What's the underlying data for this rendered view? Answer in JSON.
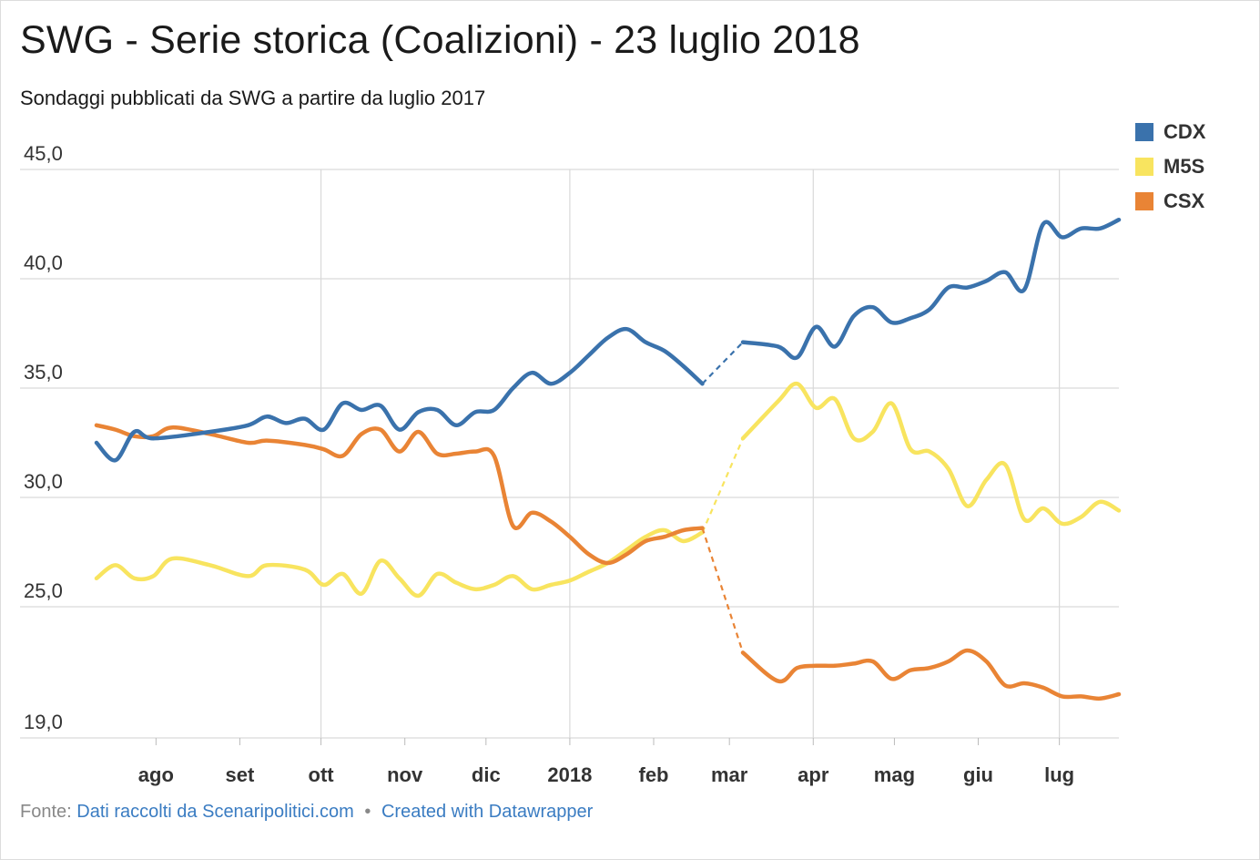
{
  "title": "SWG - Serie storica (Coalizioni) - 23 luglio 2018",
  "subtitle": "Sondaggi pubblicati da SWG a partire da luglio 2017",
  "footer": {
    "prefix": "Fonte:",
    "source_link": "Dati raccolti da Scenaripolitici.com",
    "separator": "•",
    "credit_link": "Created with Datawrapper"
  },
  "colors": {
    "CDX": "#3a72ac",
    "M5S": "#f8e45f",
    "CSX": "#e98435",
    "grid": "#d9d9d9",
    "text": "#333333"
  },
  "chart_data": {
    "type": "line",
    "title": "SWG - Serie storica (Coalizioni) - 23 luglio 2018",
    "subtitle": "Sondaggi pubblicati da SWG a partire da luglio 2017",
    "xlabel": "",
    "ylabel": "",
    "x_range": [
      "2017-07-10",
      "2018-07-23"
    ],
    "ylim": [
      19,
      45
    ],
    "y_ticks": [
      {
        "value": 45,
        "label": "45,0"
      },
      {
        "value": 40,
        "label": "40,0"
      },
      {
        "value": 35,
        "label": "35,0"
      },
      {
        "value": 30,
        "label": "30,0"
      },
      {
        "value": 25,
        "label": "25,0"
      },
      {
        "value": 19,
        "label": "19,0"
      }
    ],
    "x_ticks": [
      {
        "date": "2017-08-01",
        "label": "ago"
      },
      {
        "date": "2017-09-01",
        "label": "set"
      },
      {
        "date": "2017-10-01",
        "label": "ott"
      },
      {
        "date": "2017-11-01",
        "label": "nov"
      },
      {
        "date": "2017-12-01",
        "label": "dic"
      },
      {
        "date": "2018-01-01",
        "label": "2018"
      },
      {
        "date": "2018-02-01",
        "label": "feb"
      },
      {
        "date": "2018-03-01",
        "label": "mar"
      },
      {
        "date": "2018-04-01",
        "label": "apr"
      },
      {
        "date": "2018-05-01",
        "label": "mag"
      },
      {
        "date": "2018-06-01",
        "label": "giu"
      },
      {
        "date": "2018-07-01",
        "label": "lug"
      }
    ],
    "x_gridlines": [
      "2017-10-01",
      "2018-01-01",
      "2018-04-01",
      "2018-07-01"
    ],
    "legend": {
      "position": "top-right",
      "entries": [
        "CDX",
        "M5S",
        "CSX"
      ]
    },
    "dashed_gap": [
      "2018-02-19",
      "2018-03-06"
    ],
    "series": [
      {
        "name": "CDX",
        "points": [
          [
            "2017-07-10",
            32.5
          ],
          [
            "2017-07-17",
            31.7
          ],
          [
            "2017-07-24",
            33.0
          ],
          [
            "2017-07-31",
            32.7
          ],
          [
            "2017-08-21",
            33.0
          ],
          [
            "2017-09-04",
            33.3
          ],
          [
            "2017-09-11",
            33.7
          ],
          [
            "2017-09-18",
            33.4
          ],
          [
            "2017-09-25",
            33.6
          ],
          [
            "2017-10-02",
            33.1
          ],
          [
            "2017-10-09",
            34.3
          ],
          [
            "2017-10-16",
            34.0
          ],
          [
            "2017-10-23",
            34.2
          ],
          [
            "2017-10-30",
            33.1
          ],
          [
            "2017-11-06",
            33.9
          ],
          [
            "2017-11-13",
            34.0
          ],
          [
            "2017-11-20",
            33.3
          ],
          [
            "2017-11-27",
            33.9
          ],
          [
            "2017-12-04",
            34.0
          ],
          [
            "2017-12-11",
            35.0
          ],
          [
            "2017-12-18",
            35.7
          ],
          [
            "2017-12-25",
            35.2
          ],
          [
            "2018-01-01",
            35.7
          ],
          [
            "2018-01-08",
            36.5
          ],
          [
            "2018-01-15",
            37.3
          ],
          [
            "2018-01-22",
            37.7
          ],
          [
            "2018-01-29",
            37.1
          ],
          [
            "2018-02-05",
            36.7
          ],
          [
            "2018-02-12",
            36.0
          ],
          [
            "2018-02-19",
            35.2
          ],
          [
            "2018-03-06",
            37.1
          ],
          [
            "2018-03-19",
            36.9
          ],
          [
            "2018-03-26",
            36.4
          ],
          [
            "2018-04-02",
            37.8
          ],
          [
            "2018-04-09",
            36.9
          ],
          [
            "2018-04-16",
            38.3
          ],
          [
            "2018-04-23",
            38.7
          ],
          [
            "2018-04-30",
            38.0
          ],
          [
            "2018-05-07",
            38.2
          ],
          [
            "2018-05-14",
            38.6
          ],
          [
            "2018-05-21",
            39.6
          ],
          [
            "2018-05-28",
            39.6
          ],
          [
            "2018-06-04",
            39.9
          ],
          [
            "2018-06-11",
            40.3
          ],
          [
            "2018-06-18",
            39.5
          ],
          [
            "2018-06-25",
            42.5
          ],
          [
            "2018-07-02",
            41.9
          ],
          [
            "2018-07-09",
            42.3
          ],
          [
            "2018-07-16",
            42.3
          ],
          [
            "2018-07-23",
            42.7
          ]
        ]
      },
      {
        "name": "M5S",
        "points": [
          [
            "2017-07-10",
            26.3
          ],
          [
            "2017-07-17",
            26.9
          ],
          [
            "2017-07-24",
            26.3
          ],
          [
            "2017-07-31",
            26.4
          ],
          [
            "2017-08-07",
            27.2
          ],
          [
            "2017-08-21",
            26.9
          ],
          [
            "2017-09-04",
            26.4
          ],
          [
            "2017-09-11",
            26.9
          ],
          [
            "2017-09-25",
            26.7
          ],
          [
            "2017-10-02",
            26.0
          ],
          [
            "2017-10-09",
            26.5
          ],
          [
            "2017-10-16",
            25.6
          ],
          [
            "2017-10-23",
            27.1
          ],
          [
            "2017-10-30",
            26.3
          ],
          [
            "2017-11-06",
            25.5
          ],
          [
            "2017-11-13",
            26.5
          ],
          [
            "2017-11-20",
            26.1
          ],
          [
            "2017-11-27",
            25.8
          ],
          [
            "2017-12-04",
            26.0
          ],
          [
            "2017-12-11",
            26.4
          ],
          [
            "2017-12-18",
            25.8
          ],
          [
            "2017-12-25",
            26.0
          ],
          [
            "2018-01-01",
            26.2
          ],
          [
            "2018-01-08",
            26.6
          ],
          [
            "2018-01-15",
            27.0
          ],
          [
            "2018-01-22",
            27.6
          ],
          [
            "2018-01-29",
            28.2
          ],
          [
            "2018-02-05",
            28.5
          ],
          [
            "2018-02-12",
            28.0
          ],
          [
            "2018-02-19",
            28.4
          ],
          [
            "2018-03-06",
            32.7
          ],
          [
            "2018-03-19",
            34.4
          ],
          [
            "2018-03-26",
            35.2
          ],
          [
            "2018-04-02",
            34.1
          ],
          [
            "2018-04-09",
            34.5
          ],
          [
            "2018-04-16",
            32.7
          ],
          [
            "2018-04-23",
            33.0
          ],
          [
            "2018-04-30",
            34.3
          ],
          [
            "2018-05-07",
            32.2
          ],
          [
            "2018-05-14",
            32.1
          ],
          [
            "2018-05-21",
            31.3
          ],
          [
            "2018-05-28",
            29.6
          ],
          [
            "2018-06-04",
            30.8
          ],
          [
            "2018-06-11",
            31.5
          ],
          [
            "2018-06-18",
            29.0
          ],
          [
            "2018-06-25",
            29.5
          ],
          [
            "2018-07-02",
            28.8
          ],
          [
            "2018-07-09",
            29.1
          ],
          [
            "2018-07-16",
            29.8
          ],
          [
            "2018-07-23",
            29.4
          ]
        ]
      },
      {
        "name": "CSX",
        "points": [
          [
            "2017-07-10",
            33.3
          ],
          [
            "2017-07-17",
            33.1
          ],
          [
            "2017-07-24",
            32.8
          ],
          [
            "2017-07-31",
            32.8
          ],
          [
            "2017-08-07",
            33.2
          ],
          [
            "2017-08-21",
            32.9
          ],
          [
            "2017-09-04",
            32.5
          ],
          [
            "2017-09-11",
            32.6
          ],
          [
            "2017-09-25",
            32.4
          ],
          [
            "2017-10-02",
            32.2
          ],
          [
            "2017-10-09",
            31.9
          ],
          [
            "2017-10-16",
            32.9
          ],
          [
            "2017-10-23",
            33.1
          ],
          [
            "2017-10-30",
            32.1
          ],
          [
            "2017-11-06",
            33.0
          ],
          [
            "2017-11-13",
            32.0
          ],
          [
            "2017-11-20",
            32.0
          ],
          [
            "2017-11-27",
            32.1
          ],
          [
            "2017-12-04",
            31.9
          ],
          [
            "2017-12-11",
            28.7
          ],
          [
            "2017-12-18",
            29.3
          ],
          [
            "2017-12-25",
            28.9
          ],
          [
            "2018-01-01",
            28.2
          ],
          [
            "2018-01-08",
            27.4
          ],
          [
            "2018-01-15",
            27.0
          ],
          [
            "2018-01-22",
            27.4
          ],
          [
            "2018-01-29",
            28.0
          ],
          [
            "2018-02-05",
            28.2
          ],
          [
            "2018-02-12",
            28.5
          ],
          [
            "2018-02-19",
            28.6
          ],
          [
            "2018-03-06",
            22.9
          ],
          [
            "2018-03-19",
            21.6
          ],
          [
            "2018-03-26",
            22.2
          ],
          [
            "2018-04-02",
            22.3
          ],
          [
            "2018-04-09",
            22.3
          ],
          [
            "2018-04-16",
            22.4
          ],
          [
            "2018-04-23",
            22.5
          ],
          [
            "2018-04-30",
            21.7
          ],
          [
            "2018-05-07",
            22.1
          ],
          [
            "2018-05-14",
            22.2
          ],
          [
            "2018-05-21",
            22.5
          ],
          [
            "2018-05-28",
            23.0
          ],
          [
            "2018-06-04",
            22.5
          ],
          [
            "2018-06-11",
            21.4
          ],
          [
            "2018-06-18",
            21.5
          ],
          [
            "2018-06-25",
            21.3
          ],
          [
            "2018-07-02",
            20.9
          ],
          [
            "2018-07-09",
            20.9
          ],
          [
            "2018-07-16",
            20.8
          ],
          [
            "2018-07-23",
            21.0
          ]
        ]
      }
    ]
  }
}
